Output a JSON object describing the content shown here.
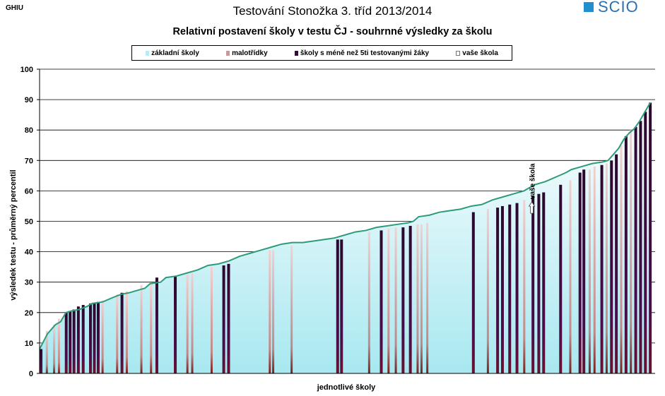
{
  "corner_code": "GHIU",
  "brand": {
    "logo_text": "SCIO",
    "accent": "#1f8fd0"
  },
  "chart_data": {
    "type": "area",
    "title": "Testování Stonožka 3. tříd 2013/2014",
    "subtitle": "Relativní postavení školy v testu ČJ - souhrnné výsledky za školu",
    "xlabel": "jednotlivé školy",
    "ylabel": "výsledek testu - průměrný percentil",
    "ylim": [
      0,
      100
    ],
    "yticks": [
      0,
      10,
      20,
      30,
      40,
      50,
      60,
      70,
      80,
      90,
      100
    ],
    "grid": true,
    "legend": [
      {
        "label": "základní školy",
        "key": "basic",
        "color": "#b8ecf2"
      },
      {
        "label": "malotřídky",
        "key": "small",
        "color": "#c99a9a"
      },
      {
        "label": "školy s méně než 5ti testovanými žáky",
        "key": "few",
        "color": "#3a0a3a"
      },
      {
        "label": "vaše škola",
        "key": "yours",
        "color": "#ffffff"
      }
    ],
    "your_school": {
      "label": "vaše škola",
      "value": 54.5
    },
    "curve": [
      [
        0,
        8
      ],
      [
        1.5,
        13
      ],
      [
        3,
        16
      ],
      [
        4,
        17
      ],
      [
        5,
        20
      ],
      [
        6,
        20.5
      ],
      [
        7.5,
        21
      ],
      [
        9,
        22
      ],
      [
        10,
        23
      ],
      [
        12,
        23.5
      ],
      [
        14,
        25
      ],
      [
        15.5,
        26
      ],
      [
        17,
        26.5
      ],
      [
        19,
        27.5
      ],
      [
        20,
        28
      ],
      [
        21,
        29.5
      ],
      [
        23,
        30
      ],
      [
        24,
        31.5
      ],
      [
        26,
        32
      ],
      [
        28,
        33
      ],
      [
        30,
        34
      ],
      [
        32,
        35.5
      ],
      [
        34,
        36
      ],
      [
        36,
        37
      ],
      [
        38,
        38.5
      ],
      [
        40,
        39.5
      ],
      [
        42,
        40.5
      ],
      [
        44,
        41.5
      ],
      [
        46,
        42.5
      ],
      [
        48,
        43
      ],
      [
        50,
        43
      ],
      [
        52,
        43.5
      ],
      [
        54,
        44
      ],
      [
        56,
        44.5
      ],
      [
        58,
        45.5
      ],
      [
        60,
        46.5
      ],
      [
        62,
        47
      ],
      [
        64,
        48
      ],
      [
        66,
        48.5
      ],
      [
        68,
        49
      ],
      [
        70,
        49.5
      ],
      [
        71,
        50
      ],
      [
        72,
        51.5
      ],
      [
        74,
        52
      ],
      [
        76,
        53
      ],
      [
        78,
        53.5
      ],
      [
        80,
        54
      ],
      [
        82,
        55
      ],
      [
        84,
        55.5
      ],
      [
        86,
        57
      ],
      [
        88,
        58
      ],
      [
        90,
        59
      ],
      [
        92,
        60
      ],
      [
        94,
        62
      ],
      [
        96,
        63
      ],
      [
        98,
        64.5
      ],
      [
        100,
        66
      ],
      [
        101,
        67
      ],
      [
        103,
        68
      ],
      [
        105,
        69
      ],
      [
        107,
        69.5
      ],
      [
        108,
        70
      ],
      [
        109,
        72
      ],
      [
        110,
        74
      ],
      [
        111,
        77
      ],
      [
        112,
        79
      ],
      [
        113,
        80.5
      ],
      [
        114,
        83
      ],
      [
        115,
        86
      ],
      [
        116,
        89
      ]
    ],
    "schools": [
      {
        "pos": 0.3,
        "value": 8,
        "type": "few"
      },
      {
        "pos": 1.5,
        "value": 14,
        "type": "small"
      },
      {
        "pos": 3,
        "value": 16,
        "type": "small"
      },
      {
        "pos": 4,
        "value": 18,
        "type": "small"
      },
      {
        "pos": 5.5,
        "value": 20,
        "type": "few"
      },
      {
        "pos": 6.3,
        "value": 20.5,
        "type": "few"
      },
      {
        "pos": 7.1,
        "value": 21,
        "type": "few"
      },
      {
        "pos": 8,
        "value": 22,
        "type": "few"
      },
      {
        "pos": 9,
        "value": 22.5,
        "type": "few"
      },
      {
        "pos": 10.5,
        "value": 23,
        "type": "few"
      },
      {
        "pos": 11.3,
        "value": 23,
        "type": "few"
      },
      {
        "pos": 12.1,
        "value": 23.5,
        "type": "few"
      },
      {
        "pos": 13,
        "value": 24,
        "type": "small"
      },
      {
        "pos": 16,
        "value": 26,
        "type": "small"
      },
      {
        "pos": 17,
        "value": 26.5,
        "type": "few"
      },
      {
        "pos": 18,
        "value": 27,
        "type": "small"
      },
      {
        "pos": 21,
        "value": 29,
        "type": "small"
      },
      {
        "pos": 23,
        "value": 29.5,
        "type": "small"
      },
      {
        "pos": 24.2,
        "value": 31.5,
        "type": "few"
      },
      {
        "pos": 28,
        "value": 32,
        "type": "few"
      },
      {
        "pos": 30.5,
        "value": 32.5,
        "type": "small"
      },
      {
        "pos": 31.5,
        "value": 33,
        "type": "small"
      },
      {
        "pos": 35.5,
        "value": 35,
        "type": "small"
      },
      {
        "pos": 38,
        "value": 35.5,
        "type": "few"
      },
      {
        "pos": 39,
        "value": 36,
        "type": "few"
      },
      {
        "pos": 47.5,
        "value": 40.5,
        "type": "small"
      },
      {
        "pos": 48.2,
        "value": 40.5,
        "type": "small"
      },
      {
        "pos": 52,
        "value": 42,
        "type": "small"
      },
      {
        "pos": 61.5,
        "value": 44,
        "type": "few"
      },
      {
        "pos": 62.3,
        "value": 44,
        "type": "few"
      },
      {
        "pos": 68,
        "value": 46.5,
        "type": "small"
      },
      {
        "pos": 70.5,
        "value": 47,
        "type": "few"
      },
      {
        "pos": 72,
        "value": 47.5,
        "type": "small"
      },
      {
        "pos": 73.5,
        "value": 48,
        "type": "small"
      },
      {
        "pos": 75,
        "value": 48,
        "type": "few"
      },
      {
        "pos": 76.5,
        "value": 48.5,
        "type": "few"
      },
      {
        "pos": 78,
        "value": 49,
        "type": "small"
      },
      {
        "pos": 78.8,
        "value": 49,
        "type": "small"
      },
      {
        "pos": 80,
        "value": 49.5,
        "type": "small"
      },
      {
        "pos": 89.5,
        "value": 53,
        "type": "few"
      },
      {
        "pos": 92.5,
        "value": 54,
        "type": "small"
      },
      {
        "pos": 94.5,
        "value": 54.5,
        "type": "few"
      },
      {
        "pos": 95.5,
        "value": 55,
        "type": "few"
      },
      {
        "pos": 97,
        "value": 55.5,
        "type": "few"
      },
      {
        "pos": 98.5,
        "value": 56,
        "type": "few"
      },
      {
        "pos": 100,
        "value": 57,
        "type": "small"
      },
      {
        "pos": 101.8,
        "value": 58.5,
        "type": "few"
      },
      {
        "pos": 103,
        "value": 59,
        "type": "few"
      },
      {
        "pos": 104,
        "value": 59.5,
        "type": "few"
      },
      {
        "pos": 107.5,
        "value": 62,
        "type": "few"
      },
      {
        "pos": 109.5,
        "value": 63.5,
        "type": "small"
      },
      {
        "pos": 111.5,
        "value": 66,
        "type": "few"
      },
      {
        "pos": 112.3,
        "value": 67,
        "type": "few"
      },
      {
        "pos": 113.5,
        "value": 67,
        "type": "small"
      },
      {
        "pos": 114.5,
        "value": 68,
        "type": "small"
      },
      {
        "pos": 116,
        "value": 68.5,
        "type": "few"
      },
      {
        "pos": 117,
        "value": 69,
        "type": "small"
      },
      {
        "pos": 118,
        "value": 70,
        "type": "few"
      },
      {
        "pos": 119,
        "value": 72,
        "type": "few"
      },
      {
        "pos": 120,
        "value": 75,
        "type": "small"
      },
      {
        "pos": 121,
        "value": 78,
        "type": "few"
      },
      {
        "pos": 122,
        "value": 80,
        "type": "small"
      },
      {
        "pos": 123,
        "value": 81,
        "type": "few"
      },
      {
        "pos": 124,
        "value": 83,
        "type": "few"
      },
      {
        "pos": 125,
        "value": 86,
        "type": "few"
      },
      {
        "pos": 126,
        "value": 89,
        "type": "few"
      }
    ]
  }
}
